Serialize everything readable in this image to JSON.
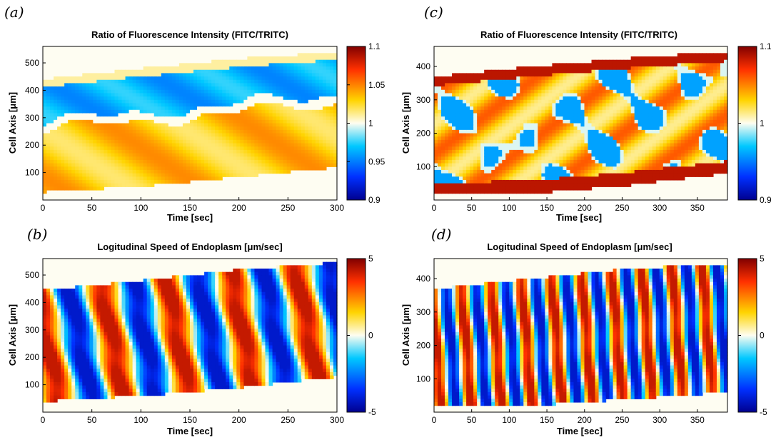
{
  "chart_data": [
    {
      "panel_label": "(a)",
      "type": "heatmap",
      "title": "Ratio of Fluorescence Intensity (FITC/TRITC)",
      "xlabel": "Time [sec]",
      "ylabel": "Cell Axis [μm]",
      "xlim": [
        0,
        300
      ],
      "ylim": [
        0,
        560
      ],
      "x_ticks": [
        "0",
        "50",
        "100",
        "150",
        "200",
        "250",
        "300"
      ],
      "y_ticks": [
        "100",
        "200",
        "300",
        "400",
        "500"
      ],
      "colorbar": {
        "min": 0.9,
        "max": 1.1,
        "ticks": [
          "0.9",
          "0.95",
          "1",
          "1.05",
          "1.1"
        ]
      },
      "cell_band": {
        "time": [
          0,
          100,
          200,
          300
        ],
        "lower": [
          30,
          50,
          85,
          120
        ],
        "upper": [
          440,
          480,
          515,
          540
        ]
      },
      "regions": [
        {
          "description": "low ratio band (blue)",
          "center_time": [
            0,
            300
          ],
          "center_axis": [
            340,
            440
          ],
          "value": 0.95
        },
        {
          "description": "high ratio band (orange)",
          "center_time": [
            0,
            300
          ],
          "center_axis": [
            120,
            190
          ],
          "value": 1.04
        }
      ]
    },
    {
      "panel_label": "(b)",
      "type": "heatmap",
      "title": "Logitudinal Speed of Endoplasm [μm/sec]",
      "xlabel": "Time [sec]",
      "ylabel": "Cell Axis [μm]",
      "xlim": [
        0,
        300
      ],
      "ylim": [
        0,
        560
      ],
      "x_ticks": [
        "0",
        "50",
        "100",
        "150",
        "200",
        "250",
        "300"
      ],
      "y_ticks": [
        "100",
        "200",
        "300",
        "400",
        "500"
      ],
      "colorbar": {
        "min": -5,
        "max": 5,
        "ticks": [
          "-5",
          "0",
          "5"
        ]
      },
      "cell_band": {
        "time": [
          0,
          100,
          200,
          300
        ],
        "lower": [
          40,
          60,
          90,
          130
        ],
        "upper": [
          445,
          480,
          520,
          545
        ]
      },
      "stripe_period_sec": 66,
      "stripe_amplitude": 4
    },
    {
      "panel_label": "(c)",
      "type": "heatmap",
      "title": "Ratio of Fluorescence Intensity (FITC/TRITC)",
      "xlabel": "Time [sec]",
      "ylabel": "Cell Axis [μm]",
      "xlim": [
        0,
        390
      ],
      "ylim": [
        0,
        460
      ],
      "x_ticks": [
        "0",
        "50",
        "100",
        "150",
        "200",
        "250",
        "300",
        "350"
      ],
      "y_ticks": [
        "100",
        "200",
        "300",
        "400"
      ],
      "colorbar": {
        "min": 0.9,
        "max": 1.1,
        "ticks": [
          "0.9",
          "1",
          "1.1"
        ]
      },
      "cell_band": {
        "time": [
          0,
          130,
          260,
          390
        ],
        "lower": [
          15,
          20,
          45,
          80
        ],
        "upper": [
          370,
          400,
          425,
          445
        ]
      },
      "regions": [
        {
          "description": "high ratio cell edges (dark red)",
          "value": 1.1
        },
        {
          "description": "low ratio patches (blue)",
          "value": 0.95
        }
      ]
    },
    {
      "panel_label": "(d)",
      "type": "heatmap",
      "title": "Logitudinal Speed of Endoplasm [μm/sec]",
      "xlabel": "Time [sec]",
      "ylabel": "Cell Axis [μm]",
      "xlim": [
        0,
        390
      ],
      "ylim": [
        0,
        460
      ],
      "x_ticks": [
        "0",
        "50",
        "100",
        "150",
        "200",
        "250",
        "300",
        "350"
      ],
      "y_ticks": [
        "100",
        "200",
        "300",
        "400"
      ],
      "colorbar": {
        "min": -5,
        "max": 5,
        "ticks": [
          "-5",
          "0",
          "5"
        ]
      },
      "cell_band": {
        "time": [
          0,
          130,
          260,
          390
        ],
        "lower": [
          15,
          20,
          40,
          60
        ],
        "upper": [
          370,
          400,
          430,
          445
        ]
      },
      "stripe_period_sec": 40,
      "stripe_amplitude": 4
    }
  ]
}
